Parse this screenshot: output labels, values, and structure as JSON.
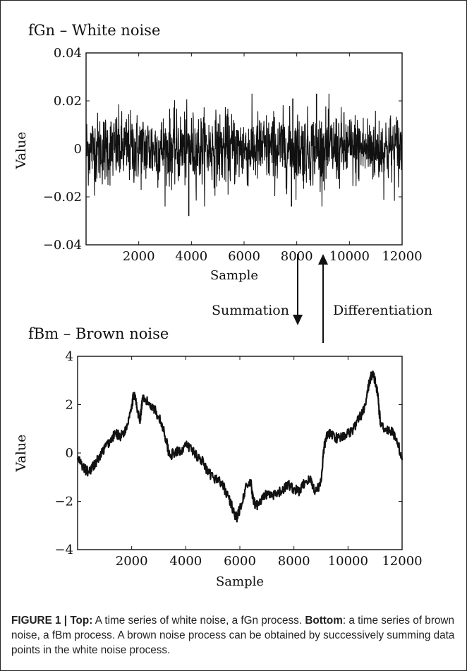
{
  "chart_data": [
    {
      "type": "line",
      "title": "fGn – White noise",
      "xlabel": "Sample",
      "ylabel": "Value",
      "xlim": [
        0,
        12000
      ],
      "ylim": [
        -0.04,
        0.04
      ],
      "xticks": [
        "2000",
        "4000",
        "6000",
        "8000",
        "10000",
        "12000"
      ],
      "yticks": [
        "0.04",
        "0.02",
        "0",
        "−0.02",
        "−0.04"
      ],
      "grid": false,
      "noise": {
        "n": 12000,
        "typical_amplitude": 0.012,
        "max": 0.023,
        "min": -0.028
      }
    },
    {
      "type": "line",
      "title": "fBm – Brown noise",
      "xlabel": "Sample",
      "ylabel": "Value",
      "xlim": [
        0,
        12000
      ],
      "ylim": [
        -4,
        4
      ],
      "xticks": [
        "2000",
        "4000",
        "6000",
        "8000",
        "10000",
        "12000"
      ],
      "yticks": [
        "4",
        "2",
        "0",
        "−2",
        "−4"
      ],
      "grid": false,
      "series": [
        {
          "x": [
            0,
            200,
            400,
            600,
            800,
            1000,
            1200,
            1400,
            1600,
            1800,
            2000,
            2100,
            2200,
            2300,
            2400,
            2600,
            2800,
            3000,
            3200,
            3400,
            3600,
            3800,
            4000,
            4200,
            4400,
            4600,
            4800,
            5000,
            5200,
            5400,
            5600,
            5800,
            5900,
            6000,
            6200,
            6400,
            6500,
            6600,
            6800,
            7000,
            7200,
            7400,
            7600,
            7800,
            8000,
            8200,
            8400,
            8600,
            8800,
            9000,
            9100,
            9200,
            9400,
            9600,
            9800,
            10000,
            10200,
            10400,
            10600,
            10800,
            10900,
            11000,
            11100,
            11200,
            11400,
            11600,
            11800,
            12000
          ],
          "y": [
            -0.2,
            -0.6,
            -0.8,
            -0.5,
            -0.2,
            0.2,
            0.5,
            0.8,
            0.7,
            1.0,
            2.0,
            2.5,
            1.8,
            1.3,
            2.2,
            2.1,
            1.9,
            1.5,
            0.9,
            -0.1,
            0.0,
            0.1,
            0.3,
            0.2,
            -0.1,
            -0.3,
            -0.8,
            -1.0,
            -1.1,
            -1.4,
            -1.9,
            -2.5,
            -2.7,
            -2.3,
            -1.5,
            -1.2,
            -2.0,
            -2.2,
            -1.9,
            -1.7,
            -1.8,
            -1.7,
            -1.5,
            -1.3,
            -1.5,
            -1.6,
            -1.2,
            -1.1,
            -1.6,
            -1.2,
            0.1,
            0.7,
            0.8,
            0.6,
            0.7,
            0.8,
            1.0,
            1.4,
            1.8,
            3.0,
            3.3,
            3.0,
            2.4,
            1.2,
            1.0,
            0.9,
            0.6,
            -0.3
          ]
        }
      ]
    }
  ],
  "arrows": {
    "down_label": "Summation",
    "up_label": "Differentiation"
  },
  "caption": {
    "figure_label": "FIGURE 1 | ",
    "top_label": "Top:",
    "top_text": " A time series of white noise, a fGn process. ",
    "bottom_label": "Bottom",
    "bottom_text": ": a time series of brown noise, a fBm process. A brown noise process can be obtained by successively summing data points in the white noise process."
  },
  "colors": {
    "line": "#111111",
    "frame": "#222222",
    "text": "#222222"
  }
}
